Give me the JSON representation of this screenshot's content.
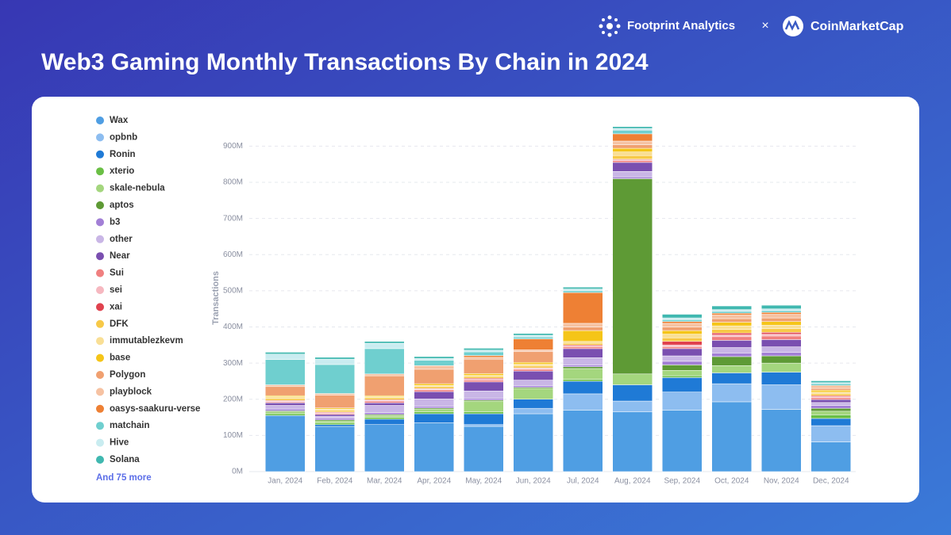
{
  "header": {
    "brand": "Footprint Analytics",
    "separator": "×",
    "partner": "CoinMarketCap"
  },
  "chart_data": {
    "type": "stacked_bar",
    "title": "Web3 Gaming Monthly Transactions By Chain in 2024",
    "y_label": "Transactions",
    "legend_note": "And 75 more",
    "legend_position": "left",
    "grid": true,
    "categories": [
      "Jan, 2024",
      "Feb, 2024",
      "Mar, 2024",
      "Apr, 2024",
      "May, 2024",
      "Jun, 2024",
      "Jul, 2024",
      "Aug, 2024",
      "Sep, 2024",
      "Oct, 2024",
      "Nov, 2024",
      "Dec, 2024"
    ],
    "ylim": [
      0,
      960000000
    ],
    "yticks": [
      {
        "value": 0,
        "label": "0M"
      },
      {
        "value": 100000000,
        "label": "100M"
      },
      {
        "value": 200000000,
        "label": "200M"
      },
      {
        "value": 300000000,
        "label": "300M"
      },
      {
        "value": 400000000,
        "label": "400M"
      },
      {
        "value": 500000000,
        "label": "500M"
      },
      {
        "value": 600000000,
        "label": "600M"
      },
      {
        "value": 700000000,
        "label": "700M"
      },
      {
        "value": 800000000,
        "label": "800M"
      },
      {
        "value": 900000000,
        "label": "900M"
      }
    ],
    "series": [
      {
        "name": "Wax",
        "color": "#4f9ee3",
        "values": [
          155000000,
          125000000,
          130000000,
          135000000,
          125000000,
          160000000,
          170000000,
          165000000,
          170000000,
          193000000,
          172000000,
          82000000
        ]
      },
      {
        "name": "opbnb",
        "color": "#8dbdf0",
        "values": [
          0,
          0,
          0,
          0,
          5000000,
          15000000,
          45000000,
          30000000,
          50000000,
          50000000,
          68000000,
          45000000
        ]
      },
      {
        "name": "Ronin",
        "color": "#1f7ad6",
        "values": [
          0,
          5000000,
          15000000,
          25000000,
          30000000,
          25000000,
          35000000,
          45000000,
          40000000,
          30000000,
          35000000,
          20000000
        ]
      },
      {
        "name": "xterio",
        "color": "#6abf45",
        "values": [
          5000000,
          5000000,
          5000000,
          5000000,
          5000000,
          0,
          5000000,
          0,
          5000000,
          0,
          0,
          10000000
        ]
      },
      {
        "name": "skale-nebula",
        "color": "#a4d67e",
        "values": [
          5000000,
          5000000,
          5000000,
          8000000,
          30000000,
          30000000,
          30000000,
          30000000,
          15000000,
          20000000,
          25000000,
          10000000
        ]
      },
      {
        "name": "aptos",
        "color": "#5e9a35",
        "values": [
          3000000,
          3000000,
          3000000,
          3000000,
          3000000,
          3000000,
          5000000,
          540000000,
          15000000,
          25000000,
          20000000,
          8000000
        ]
      },
      {
        "name": "b3",
        "color": "#a27fd6",
        "values": [
          5000000,
          5000000,
          5000000,
          5000000,
          5000000,
          5000000,
          5000000,
          5000000,
          10000000,
          10000000,
          10000000,
          8000000
        ]
      },
      {
        "name": "other",
        "color": "#c9b6e6",
        "values": [
          10000000,
          5000000,
          20000000,
          20000000,
          20000000,
          15000000,
          20000000,
          15000000,
          15000000,
          15000000,
          15000000,
          8000000
        ]
      },
      {
        "name": "Near",
        "color": "#7a4fb0",
        "values": [
          7000000,
          5000000,
          7000000,
          20000000,
          25000000,
          25000000,
          25000000,
          25000000,
          20000000,
          20000000,
          20000000,
          8000000
        ]
      },
      {
        "name": "Sui",
        "color": "#f08080",
        "values": [
          3000000,
          3000000,
          5000000,
          5000000,
          5000000,
          5000000,
          5000000,
          5000000,
          5000000,
          10000000,
          10000000,
          5000000
        ]
      },
      {
        "name": "sei",
        "color": "#f6b8c0",
        "values": [
          2000000,
          2000000,
          2000000,
          2000000,
          2000000,
          2000000,
          2000000,
          2000000,
          5000000,
          5000000,
          5000000,
          3000000
        ]
      },
      {
        "name": "xai",
        "color": "#e0424e",
        "values": [
          2000000,
          2000000,
          2000000,
          2000000,
          3000000,
          2000000,
          3000000,
          2000000,
          10000000,
          5000000,
          5000000,
          3000000
        ]
      },
      {
        "name": "DFK",
        "color": "#f7c948",
        "values": [
          5000000,
          5000000,
          5000000,
          5000000,
          5000000,
          5000000,
          5000000,
          10000000,
          10000000,
          10000000,
          10000000,
          5000000
        ]
      },
      {
        "name": "immutablezkevm",
        "color": "#f9df95",
        "values": [
          5000000,
          3000000,
          3000000,
          3000000,
          3000000,
          5000000,
          5000000,
          10000000,
          10000000,
          10000000,
          10000000,
          5000000
        ]
      },
      {
        "name": "base",
        "color": "#f5c518",
        "values": [
          3000000,
          3000000,
          3000000,
          5000000,
          5000000,
          5000000,
          30000000,
          10000000,
          10000000,
          10000000,
          10000000,
          5000000
        ]
      },
      {
        "name": "Polygon",
        "color": "#f0a070",
        "values": [
          25000000,
          35000000,
          55000000,
          40000000,
          40000000,
          30000000,
          10000000,
          10000000,
          10000000,
          10000000,
          10000000,
          5000000
        ]
      },
      {
        "name": "playblock",
        "color": "#f6c2a2",
        "values": [
          5000000,
          5000000,
          5000000,
          10000000,
          5000000,
          5000000,
          10000000,
          10000000,
          10000000,
          10000000,
          10000000,
          5000000
        ]
      },
      {
        "name": "oasys-saakuru-verse",
        "color": "#ee8034",
        "values": [
          0,
          0,
          0,
          0,
          5000000,
          30000000,
          85000000,
          20000000,
          5000000,
          5000000,
          5000000,
          3000000
        ]
      },
      {
        "name": "matchain",
        "color": "#6fcfcf",
        "values": [
          70000000,
          80000000,
          70000000,
          15000000,
          10000000,
          5000000,
          5000000,
          10000000,
          5000000,
          5000000,
          5000000,
          5000000
        ]
      },
      {
        "name": "Hive",
        "color": "#c9ecf0",
        "values": [
          15000000,
          15000000,
          15000000,
          5000000,
          5000000,
          5000000,
          5000000,
          5000000,
          5000000,
          5000000,
          5000000,
          3000000
        ]
      },
      {
        "name": "Solana",
        "color": "#40b8b0",
        "values": [
          5000000,
          5000000,
          5000000,
          5000000,
          5000000,
          5000000,
          5000000,
          5000000,
          10000000,
          10000000,
          10000000,
          5000000
        ]
      }
    ]
  }
}
